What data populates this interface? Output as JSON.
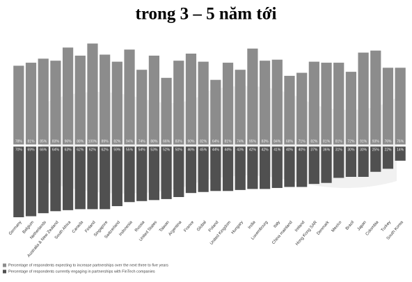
{
  "chart_data": {
    "type": "bar",
    "title": "trong 3 – 5 năm tới",
    "categories": [
      "Germany",
      "Belgium",
      "Netherlands",
      "Australia & New Zealand",
      "South Africa",
      "Canada",
      "Finland",
      "Singapore",
      "Switzerland",
      "Indonesia",
      "Russia",
      "United States",
      "Taiwan",
      "Argentina",
      "France",
      "Global",
      "Poland",
      "United Kingdom",
      "Hungary",
      "India",
      "Luxembourg",
      "Italy",
      "China mainland",
      "Ireland",
      "Hong Kong SAR",
      "Denmark",
      "Mexico",
      "Brazil",
      "Japan",
      "Colombia",
      "Turkey",
      "South Korea"
    ],
    "series": [
      {
        "name": "Percentage of respondents expecting to increase partnerships over the next three to five years",
        "color": "#8c8c8c",
        "values": [
          78,
          81,
          85,
          83,
          96,
          88,
          100,
          89,
          82,
          94,
          74,
          88,
          66,
          83,
          90,
          82,
          64,
          81,
          74,
          95,
          83,
          84,
          68,
          71,
          82,
          81,
          81,
          72,
          91,
          93,
          76,
          76
        ],
        "value_labels": [
          "78%",
          "81%",
          "85%",
          "83%",
          "96%",
          "88%",
          "100%",
          "89%",
          "82%",
          "94%",
          "74%",
          "88%",
          "66%",
          "83%",
          "90%",
          "82%",
          "64%",
          "81%",
          "74%",
          "95%",
          "83%",
          "84%",
          "68%",
          "71%",
          "82%",
          "81%",
          "81%",
          "72%",
          "91%",
          "93%",
          "76%",
          "76%"
        ]
      },
      {
        "name": "Percentage of respondents currently engaging in partnerships with FinTech companies",
        "color": "#505050",
        "values": [
          70,
          69,
          66,
          64,
          63,
          62,
          62,
          62,
          59,
          55,
          54,
          53,
          52,
          50,
          46,
          45,
          44,
          44,
          43,
          42,
          42,
          41,
          40,
          40,
          37,
          36,
          31,
          30,
          30,
          25,
          22,
          14
        ],
        "value_labels": [
          "70%",
          "69%",
          "66%",
          "64%",
          "63%",
          "62%",
          "62%",
          "62%",
          "59%",
          "55%",
          "54%",
          "53%",
          "52%",
          "50%",
          "46%",
          "45%",
          "44%",
          "44%",
          "43%",
          "42%",
          "42%",
          "41%",
          "40%",
          "40%",
          "37%",
          "36%",
          "31%",
          "30%",
          "30%",
          "25%",
          "22%",
          "14%"
        ]
      }
    ]
  }
}
